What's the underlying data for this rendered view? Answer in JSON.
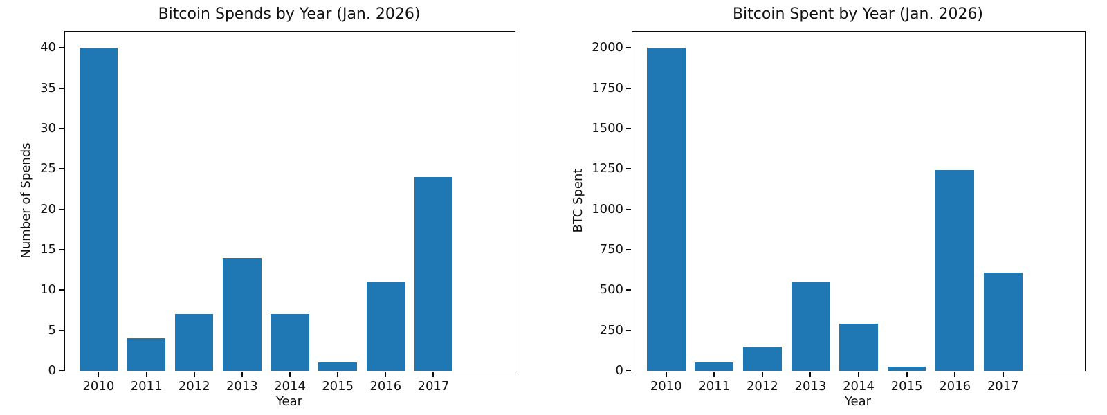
{
  "figure": {
    "background": "#ffffff"
  },
  "colors": {
    "bar": "#1f77b4",
    "text": "#111111",
    "spine": "#0a0a0a"
  },
  "chart_data": [
    {
      "type": "bar",
      "title": "Bitcoin Spends by Year (Jan. 2026)",
      "xlabel": "Year",
      "ylabel": "Number of Spends",
      "categories": [
        "2010",
        "2011",
        "2012",
        "2013",
        "2014",
        "2015",
        "2016",
        "2017"
      ],
      "values": [
        40,
        4,
        7,
        14,
        7,
        1,
        11,
        24
      ],
      "yticks": [
        0,
        5,
        10,
        15,
        20,
        25,
        30,
        35,
        40
      ],
      "ylim": [
        0,
        42
      ],
      "grid": false,
      "legend": null,
      "bar_color": "#1f77b4"
    },
    {
      "type": "bar",
      "title": "Bitcoin Spent by Year (Jan. 2026)",
      "xlabel": "Year",
      "ylabel": "BTC Spent",
      "categories": [
        "2010",
        "2011",
        "2012",
        "2013",
        "2014",
        "2015",
        "2016",
        "2017"
      ],
      "values": [
        2000,
        50,
        150,
        550,
        290,
        25,
        1245,
        610
      ],
      "yticks": [
        0,
        250,
        500,
        750,
        1000,
        1250,
        1500,
        1750,
        2000
      ],
      "ylim": [
        0,
        2100
      ],
      "grid": false,
      "legend": null,
      "bar_color": "#1f77b4"
    }
  ]
}
